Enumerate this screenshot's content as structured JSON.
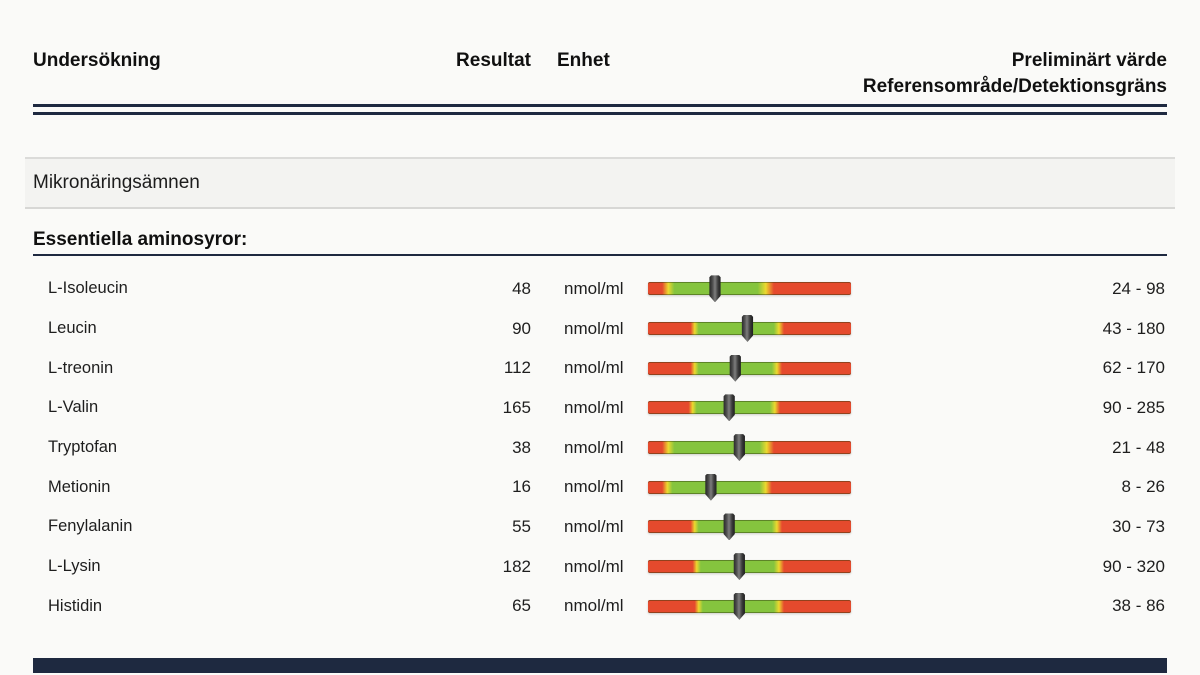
{
  "header": {
    "undersokning": "Undersökning",
    "resultat": "Resultat",
    "enhet": "Enhet",
    "preliminart_varde": "Preliminärt värde",
    "referensomrade": "Referensområde/Detektionsgräns"
  },
  "section_bar": {
    "title": "Mikronäringsämnen"
  },
  "group_heading": {
    "title": "Essentiella aminosyror:"
  },
  "colors": {
    "navy_divider": "#1e2940",
    "bar_red": "#e54a2d",
    "bar_yellow": "#ecd92f",
    "bar_green": "#85c43e",
    "marker_dark": "#2b2b2b",
    "band_background": "#f3f3f1"
  },
  "rows": [
    {
      "label": "L-Isoleucin",
      "result": "48",
      "unit": "nmol/ml",
      "range": "24 - 98",
      "marker_pct": 33,
      "zones": [
        7,
        13,
        54,
        62
      ]
    },
    {
      "label": "Leucin",
      "result": "90",
      "unit": "nmol/ml",
      "range": "43 - 180",
      "marker_pct": 49,
      "zones": [
        21,
        25,
        62,
        67
      ]
    },
    {
      "label": "L-treonin",
      "result": "112",
      "unit": "nmol/ml",
      "range": "62 - 170",
      "marker_pct": 43,
      "zones": [
        21,
        25,
        61,
        66
      ]
    },
    {
      "label": "L-Valin",
      "result": "165",
      "unit": "nmol/ml",
      "range": "90 - 285",
      "marker_pct": 40,
      "zones": [
        20,
        24,
        60,
        65
      ]
    },
    {
      "label": "Tryptofan",
      "result": "38",
      "unit": "nmol/ml",
      "range": "21 - 48",
      "marker_pct": 45,
      "zones": [
        7,
        13,
        55,
        62
      ]
    },
    {
      "label": "Metionin",
      "result": "16",
      "unit": "nmol/ml",
      "range": "8 - 26",
      "marker_pct": 31,
      "zones": [
        7,
        12,
        55,
        61
      ]
    },
    {
      "label": "Fenylalanin",
      "result": "55",
      "unit": "nmol/ml",
      "range": "30 - 73",
      "marker_pct": 40,
      "zones": [
        21,
        25,
        61,
        66
      ]
    },
    {
      "label": "L-Lysin",
      "result": "182",
      "unit": "nmol/ml",
      "range": "90 - 320",
      "marker_pct": 45,
      "zones": [
        22,
        26,
        62,
        67
      ]
    },
    {
      "label": "Histidin",
      "result": "65",
      "unit": "nmol/ml",
      "range": "38 - 86",
      "marker_pct": 45,
      "zones": [
        23,
        27,
        62,
        67
      ]
    }
  ]
}
